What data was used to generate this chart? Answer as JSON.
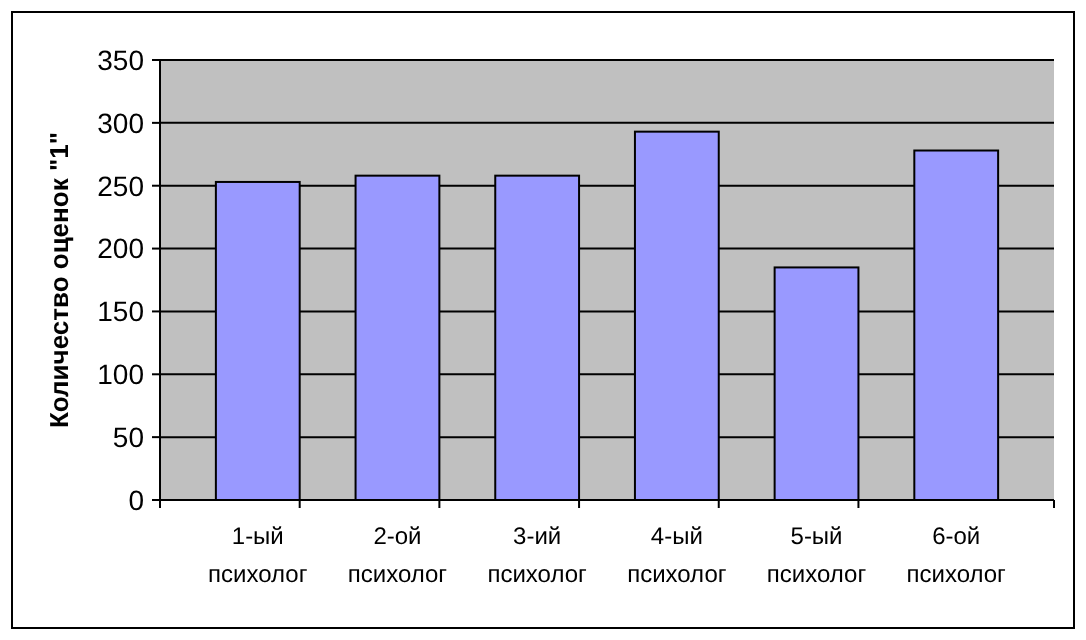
{
  "chart_data": {
    "type": "bar",
    "ylabel": "Количество оценок \"1\"",
    "categories": [
      "1-ый\nпсихолог",
      "2-ой\nпсихолог",
      "3-ий\nпсихолог",
      "4-ый\nпсихолог",
      "5-ый\nпсихолог",
      "6-ой\nпсихолог"
    ],
    "values": [
      253,
      258,
      258,
      293,
      185,
      278
    ],
    "color": "#9999ff",
    "ylim": [
      0,
      350
    ],
    "yticks": [
      0,
      50,
      100,
      150,
      200,
      250,
      300,
      350
    ],
    "grid": "y"
  }
}
